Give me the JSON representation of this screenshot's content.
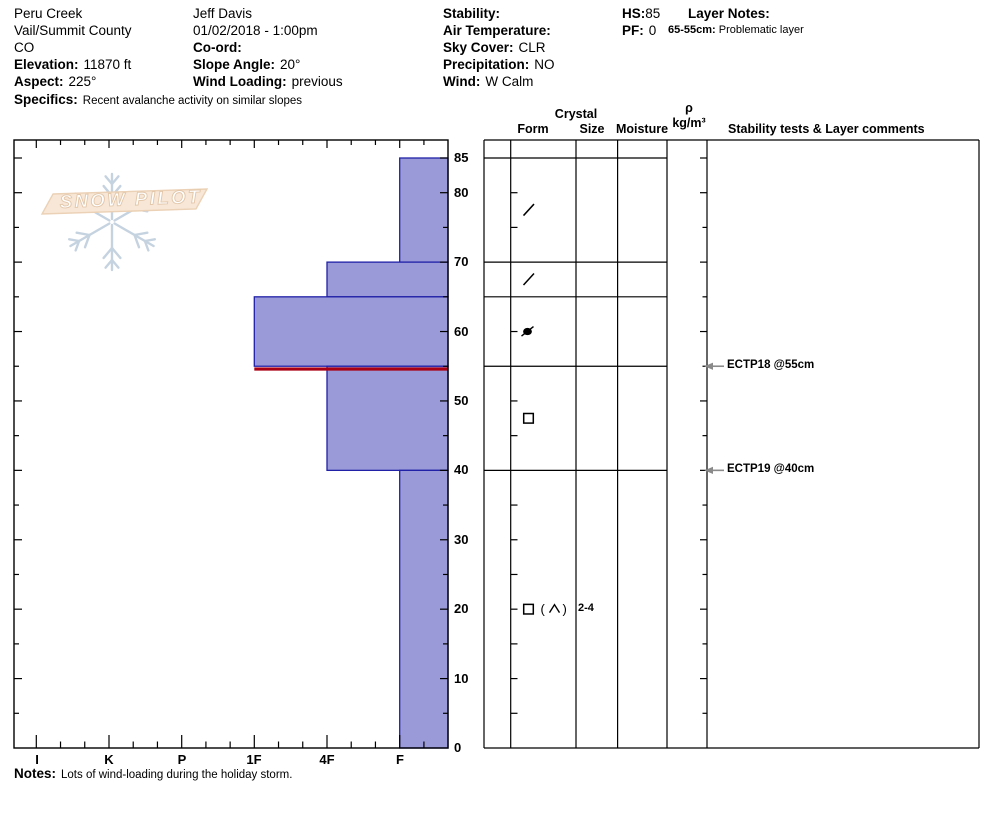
{
  "header": {
    "col1": {
      "line1": "Peru Creek",
      "line2": "Vail/Summit County",
      "line3": "CO",
      "elevation_label": "Elevation:",
      "elevation_value": "11870 ft",
      "aspect_label": "Aspect:",
      "aspect_value": "225°",
      "specifics_label": "Specifics:",
      "specifics_value": "Recent avalanche activity on similar slopes"
    },
    "col2": {
      "line1": "Jeff Davis",
      "line2": "01/02/2018 - 1:00pm",
      "coord_label": "Co-ord:",
      "coord_value": "",
      "slope_label": "Slope Angle:",
      "slope_value": "20°",
      "wind_loading_label": "Wind Loading:",
      "wind_loading_value": "previous"
    },
    "col3": {
      "stability_label": "Stability:",
      "stability_value": "",
      "air_temp_label": "Air Temperature:",
      "air_temp_value": "",
      "sky_label": "Sky Cover:",
      "sky_value": "CLR",
      "precip_label": "Precipitation:",
      "precip_value": "NO",
      "wind_label": "Wind:",
      "wind_value": "W Calm"
    },
    "col4": {
      "hs_label": "HS:",
      "hs_value": "85",
      "pf_label": "PF:",
      "pf_value": "0"
    },
    "col5": {
      "layer_notes_label": "Layer Notes:",
      "note1_label": "65-55cm:",
      "note1_value": "Problematic layer"
    }
  },
  "columns": {
    "crystal": "Crystal",
    "form": "Form",
    "size": "Size",
    "moisture": "Moisture",
    "rho": "ρ",
    "rho_unit": "kg/m³",
    "stability": "Stability tests & Layer comments"
  },
  "chart_data": {
    "type": "bar",
    "subtype": "snow-hardness-profile",
    "depth_axis": {
      "unit": "cm",
      "max": 85,
      "tick_labels": [
        85,
        80,
        70,
        60,
        50,
        40,
        30,
        20,
        10,
        0
      ],
      "minor_step_cm": 5
    },
    "hardness_axis": {
      "tick_labels": [
        "I",
        "K",
        "P",
        "1F",
        "4F",
        "F"
      ]
    },
    "total_height_cm": 85,
    "layers": [
      {
        "top_cm": 85,
        "bottom_cm": 70,
        "hardness": "F",
        "form": "decomposing-fragments",
        "form_symbol": "slash"
      },
      {
        "top_cm": 70,
        "bottom_cm": 65,
        "hardness": "4F",
        "form": "decomposing-fragments",
        "form_symbol": "slash"
      },
      {
        "top_cm": 65,
        "bottom_cm": 55,
        "hardness": "1F",
        "form": "rounded-grains-mixed",
        "form_symbol": "dot-slash"
      },
      {
        "top_cm": 55,
        "bottom_cm": 40,
        "hardness": "4F",
        "form": "faceted-crystals",
        "form_symbol": "square"
      },
      {
        "top_cm": 40,
        "bottom_cm": 0,
        "hardness": "F",
        "form": "facets-depth-hoar",
        "form_symbol": "square-chevron",
        "size_mm": "2-4"
      }
    ],
    "failure_plane_cm": 55,
    "tests": [
      {
        "label": "ECTP18 @55cm",
        "depth_cm": 55
      },
      {
        "label": "ECTP19 @40cm",
        "depth_cm": 40
      }
    ]
  },
  "notes": {
    "label": "Notes:",
    "text": "Lots of wind-loading during the holiday storm."
  },
  "logo": {
    "text": "SNOW PILOT"
  },
  "colors": {
    "bar_fill": "#9a9ad8",
    "bar_border": "#2121a8",
    "flag_red": "#aa0014",
    "arrow_gray": "#8a8a8a",
    "snowflake": "#bccbdb",
    "banner_fill": "#f7e3cf",
    "banner_border": "#e8c9a9",
    "banner_text_outline": "#ddbd9b"
  }
}
